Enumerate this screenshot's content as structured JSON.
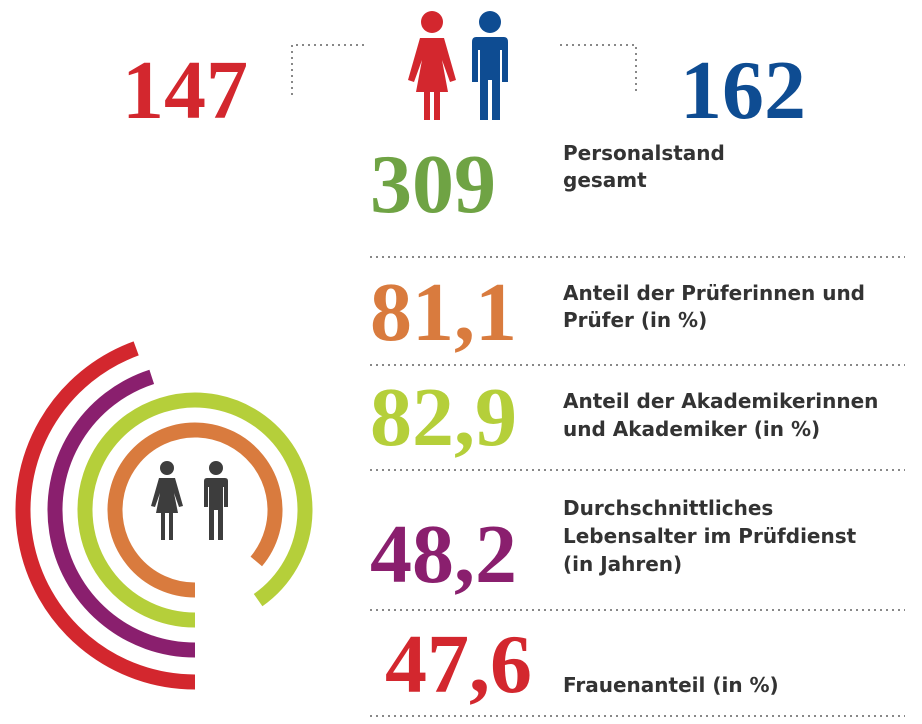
{
  "summary": {
    "women": "147",
    "men": "162",
    "total": "309",
    "total_label": [
      "Personalstand",
      "gesamt"
    ]
  },
  "stats": [
    {
      "value": "81,1",
      "label": [
        "Anteil der Prüferinnen und",
        "Prüfer (in %)"
      ]
    },
    {
      "value": "82,9",
      "label": [
        "Anteil der Akademikerinnen",
        "und Akademiker (in %)"
      ]
    },
    {
      "value": "48,2",
      "label": [
        "Durchschnittliches",
        "Lebensalter im Prüfdienst",
        "(in Jahren)"
      ]
    },
    {
      "value": "47,6",
      "label": [
        "Frauenanteil (in %)"
      ]
    }
  ]
}
